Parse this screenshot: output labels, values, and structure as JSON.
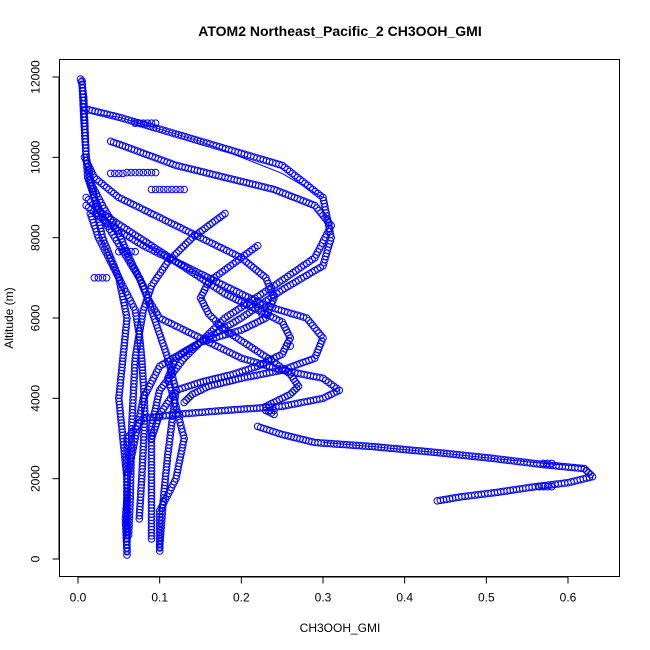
{
  "chart_data": {
    "type": "scatter",
    "title": "ATOM2 Northeast_Pacific_2 CH3OOH_GMI",
    "xlabel": "CH3OOH_GMI",
    "ylabel": "Altitude (m)",
    "xlim": [
      -0.02,
      0.66
    ],
    "ylim": [
      -400,
      12500
    ],
    "xticks": [
      0.0,
      0.1,
      0.2,
      0.3,
      0.4,
      0.5,
      0.6
    ],
    "xtick_labels": [
      "0.0",
      "0.1",
      "0.2",
      "0.3",
      "0.4",
      "0.5",
      "0.6"
    ],
    "yticks": [
      0,
      2000,
      4000,
      6000,
      8000,
      10000,
      12000
    ],
    "ytick_labels": [
      "0",
      "2000",
      "4000",
      "6000",
      "8000",
      "10000",
      "12000"
    ],
    "grid": false,
    "color": "#0000ff",
    "marker": "open-circle",
    "profiles": [
      {
        "x": [
          0.003,
          0.005,
          0.007,
          0.008,
          0.01,
          0.012,
          0.02,
          0.03,
          0.045,
          0.06,
          0.075,
          0.085,
          0.1,
          0.15,
          0.2,
          0.25,
          0.3,
          0.32,
          0.3,
          0.25,
          0.18,
          0.12,
          0.08,
          0.06,
          0.06,
          0.06,
          0.06,
          0.058,
          0.06
        ],
        "y": [
          11950,
          11800,
          11500,
          11000,
          10000,
          9500,
          9000,
          8500,
          8000,
          7500,
          7000,
          6500,
          6000,
          5500,
          5000,
          4700,
          4500,
          4200,
          4000,
          3800,
          3700,
          3600,
          3500,
          3000,
          2500,
          2000,
          1500,
          1000,
          200
        ]
      },
      {
        "x": [
          0.01,
          0.05,
          0.1,
          0.15,
          0.2,
          0.25,
          0.3,
          0.31,
          0.3,
          0.25,
          0.2,
          0.15,
          0.1,
          0.08,
          0.07,
          0.06,
          0.06,
          0.06
        ],
        "y": [
          11200,
          11000,
          10700,
          10400,
          10100,
          9800,
          9000,
          8000,
          7300,
          6700,
          6000,
          5400,
          4800,
          4000,
          3000,
          2000,
          1000,
          100
        ]
      },
      {
        "x": [
          0.04,
          0.08,
          0.12,
          0.18,
          0.24,
          0.29,
          0.31,
          0.29,
          0.24,
          0.18,
          0.13,
          0.1,
          0.09,
          0.09,
          0.09,
          0.09
        ],
        "y": [
          10400,
          10100,
          9800,
          9500,
          9200,
          8800,
          8300,
          7500,
          6800,
          6000,
          5000,
          4200,
          3300,
          2500,
          1500,
          500
        ]
      },
      {
        "x": [
          0.008,
          0.02,
          0.05,
          0.1,
          0.15,
          0.2,
          0.23,
          0.24,
          0.23,
          0.2,
          0.15,
          0.12,
          0.11,
          0.12,
          0.13,
          0.12,
          0.1,
          0.1
        ],
        "y": [
          10000,
          9500,
          9000,
          8500,
          8000,
          7500,
          7000,
          6500,
          6000,
          5700,
          5400,
          5000,
          4500,
          3800,
          3000,
          2000,
          1200,
          200
        ]
      },
      {
        "x": [
          0.01,
          0.03,
          0.06,
          0.09,
          0.12,
          0.15,
          0.18,
          0.21,
          0.25,
          0.26,
          0.25,
          0.22,
          0.19,
          0.15,
          0.12,
          0.1,
          0.09
        ],
        "y": [
          9000,
          8600,
          8200,
          7800,
          7400,
          7000,
          6600,
          6300,
          5900,
          5500,
          5100,
          4800,
          4600,
          4400,
          4200,
          3600,
          3000
        ]
      },
      {
        "x": [
          0.01,
          0.04,
          0.08,
          0.13,
          0.18,
          0.23,
          0.28,
          0.3,
          0.29,
          0.25,
          0.2,
          0.16,
          0.14,
          0.13
        ],
        "y": [
          8800,
          8300,
          7800,
          7300,
          6800,
          6300,
          6000,
          5500,
          5000,
          4700,
          4500,
          4300,
          4100,
          3900
        ]
      },
      {
        "x": [
          0.18,
          0.14,
          0.11,
          0.09,
          0.08,
          0.075,
          0.07,
          0.068,
          0.066,
          0.065,
          0.064,
          0.062
        ],
        "y": [
          8600,
          8000,
          7400,
          6800,
          6200,
          5600,
          5000,
          4200,
          3400,
          2500,
          1500,
          600
        ]
      },
      {
        "x": [
          0.22,
          0.2,
          0.18,
          0.16,
          0.15,
          0.16,
          0.18,
          0.21,
          0.24,
          0.26,
          0.27,
          0.26,
          0.24,
          0.23,
          0.23,
          0.24
        ],
        "y": [
          7800,
          7500,
          7200,
          6900,
          6500,
          6100,
          5700,
          5300,
          4900,
          4600,
          4300,
          4100,
          3900,
          3800,
          3700,
          3600
        ]
      },
      {
        "x": [
          0.22,
          0.25,
          0.29,
          0.36,
          0.44,
          0.51,
          0.57,
          0.62,
          0.63,
          0.6,
          0.56,
          0.51,
          0.47,
          0.44
        ],
        "y": [
          3300,
          3100,
          2900,
          2800,
          2650,
          2500,
          2350,
          2250,
          2050,
          1900,
          1800,
          1650,
          1550,
          1450
        ]
      },
      {
        "x": [
          0.005,
          0.007,
          0.01,
          0.02,
          0.03,
          0.05,
          0.06,
          0.055,
          0.05,
          0.055,
          0.06,
          0.06
        ],
        "y": [
          11900,
          11000,
          10000,
          9000,
          8000,
          7000,
          6000,
          5000,
          4000,
          3000,
          2000,
          500
        ]
      },
      {
        "x": [
          0.012,
          0.03,
          0.05,
          0.065,
          0.08,
          0.09,
          0.1,
          0.11,
          0.12,
          0.115,
          0.11,
          0.105,
          0.1
        ],
        "y": [
          9500,
          8800,
          8100,
          7400,
          6800,
          6200,
          5600,
          5000,
          4200,
          3400,
          2600,
          1600,
          300
        ]
      },
      {
        "x": [
          0.015,
          0.025,
          0.04,
          0.055,
          0.07,
          0.075,
          0.078,
          0.08,
          0.082,
          0.08,
          0.078,
          0.075
        ],
        "y": [
          8600,
          8000,
          7400,
          6800,
          6200,
          5600,
          5000,
          4400,
          3600,
          2800,
          2000,
          1000
        ]
      }
    ],
    "point_clusters": [
      {
        "x": [
          0.04,
          0.045,
          0.05,
          0.055,
          0.06,
          0.065,
          0.07,
          0.075,
          0.08,
          0.085,
          0.09,
          0.095
        ],
        "y": [
          9600,
          9600,
          9600,
          9600,
          9620,
          9620,
          9620,
          9620,
          9620,
          9620,
          9620,
          9620
        ]
      },
      {
        "x": [
          0.09,
          0.095,
          0.1,
          0.105,
          0.11,
          0.115,
          0.12,
          0.125,
          0.13
        ],
        "y": [
          9200,
          9200,
          9200,
          9200,
          9200,
          9200,
          9200,
          9200,
          9200
        ]
      },
      {
        "x": [
          0.05,
          0.055,
          0.06,
          0.065,
          0.07
        ],
        "y": [
          7650,
          7650,
          7650,
          7650,
          7650
        ]
      },
      {
        "x": [
          0.02,
          0.025,
          0.03,
          0.035
        ],
        "y": [
          7000,
          7000,
          7000,
          7000
        ]
      },
      {
        "x": [
          0.07,
          0.075,
          0.08,
          0.085,
          0.09,
          0.095
        ],
        "y": [
          10850,
          10850,
          10850,
          10850,
          10850,
          10850
        ]
      },
      {
        "x": [
          0.565,
          0.57,
          0.575,
          0.58
        ],
        "y": [
          1800,
          1800,
          1800,
          1800
        ]
      },
      {
        "x": [
          0.57,
          0.575,
          0.58
        ],
        "y": [
          2380,
          2380,
          2380
        ]
      },
      {
        "x": [
          0.23,
          0.235,
          0.24
        ],
        "y": [
          3700,
          3700,
          3700
        ]
      },
      {
        "x": [
          0.255,
          0.26
        ],
        "y": [
          5300,
          5300
        ]
      },
      {
        "x": [
          0.225,
          0.23
        ],
        "y": [
          6100,
          6100
        ]
      }
    ],
    "connected_segments": [
      {
        "x": [
          0.015,
          0.05,
          0.1,
          0.15,
          0.2,
          0.25,
          0.3
        ],
        "y": [
          11100,
          11000,
          10700,
          10400,
          10000,
          9600,
          9000
        ]
      },
      {
        "x": [
          0.3,
          0.36,
          0.44,
          0.51,
          0.57,
          0.62,
          0.63
        ],
        "y": [
          2900,
          2800,
          2650,
          2500,
          2380,
          2300,
          2150
        ]
      }
    ]
  }
}
